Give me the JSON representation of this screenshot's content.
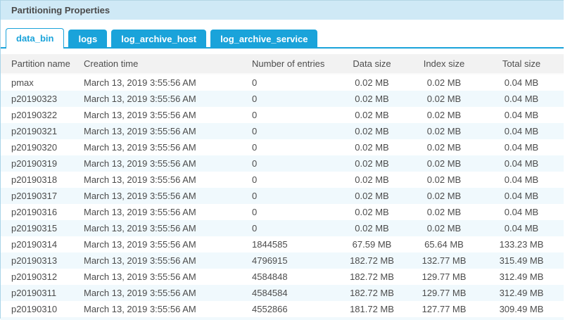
{
  "panel": {
    "title": "Partitioning Properties"
  },
  "tabs": [
    {
      "label": "data_bin",
      "active": true
    },
    {
      "label": "logs",
      "active": false
    },
    {
      "label": "log_archive_host",
      "active": false
    },
    {
      "label": "log_archive_service",
      "active": false
    }
  ],
  "table": {
    "columns": [
      "Partition name",
      "Creation time",
      "Number of entries",
      "Data size",
      "Index size",
      "Total size"
    ],
    "rows": [
      [
        "pmax",
        "March 13, 2019 3:55:56 AM",
        "0",
        "0.02 MB",
        "0.02 MB",
        "0.04 MB"
      ],
      [
        "p20190323",
        "March 13, 2019 3:55:56 AM",
        "0",
        "0.02 MB",
        "0.02 MB",
        "0.04 MB"
      ],
      [
        "p20190322",
        "March 13, 2019 3:55:56 AM",
        "0",
        "0.02 MB",
        "0.02 MB",
        "0.04 MB"
      ],
      [
        "p20190321",
        "March 13, 2019 3:55:56 AM",
        "0",
        "0.02 MB",
        "0.02 MB",
        "0.04 MB"
      ],
      [
        "p20190320",
        "March 13, 2019 3:55:56 AM",
        "0",
        "0.02 MB",
        "0.02 MB",
        "0.04 MB"
      ],
      [
        "p20190319",
        "March 13, 2019 3:55:56 AM",
        "0",
        "0.02 MB",
        "0.02 MB",
        "0.04 MB"
      ],
      [
        "p20190318",
        "March 13, 2019 3:55:56 AM",
        "0",
        "0.02 MB",
        "0.02 MB",
        "0.04 MB"
      ],
      [
        "p20190317",
        "March 13, 2019 3:55:56 AM",
        "0",
        "0.02 MB",
        "0.02 MB",
        "0.04 MB"
      ],
      [
        "p20190316",
        "March 13, 2019 3:55:56 AM",
        "0",
        "0.02 MB",
        "0.02 MB",
        "0.04 MB"
      ],
      [
        "p20190315",
        "March 13, 2019 3:55:56 AM",
        "0",
        "0.02 MB",
        "0.02 MB",
        "0.04 MB"
      ],
      [
        "p20190314",
        "March 13, 2019 3:55:56 AM",
        "1844585",
        "67.59 MB",
        "65.64 MB",
        "133.23 MB"
      ],
      [
        "p20190313",
        "March 13, 2019 3:55:56 AM",
        "4796915",
        "182.72 MB",
        "132.77 MB",
        "315.49 MB"
      ],
      [
        "p20190312",
        "March 13, 2019 3:55:56 AM",
        "4584848",
        "182.72 MB",
        "129.77 MB",
        "312.49 MB"
      ],
      [
        "p20190311",
        "March 13, 2019 3:55:56 AM",
        "4584584",
        "182.72 MB",
        "129.77 MB",
        "312.49 MB"
      ],
      [
        "p20190310",
        "March 13, 2019 3:55:56 AM",
        "4552866",
        "181.72 MB",
        "127.77 MB",
        "309.49 MB"
      ]
    ]
  },
  "colors": {
    "accent_blue": "#1aa3da",
    "titlebar_bg": "#cfe9f6",
    "row_stripe": "#f0f9fd",
    "table_header_bg": "#f2f2f2",
    "panel_border": "#a9d4e8",
    "text": "#4c4c4c"
  }
}
